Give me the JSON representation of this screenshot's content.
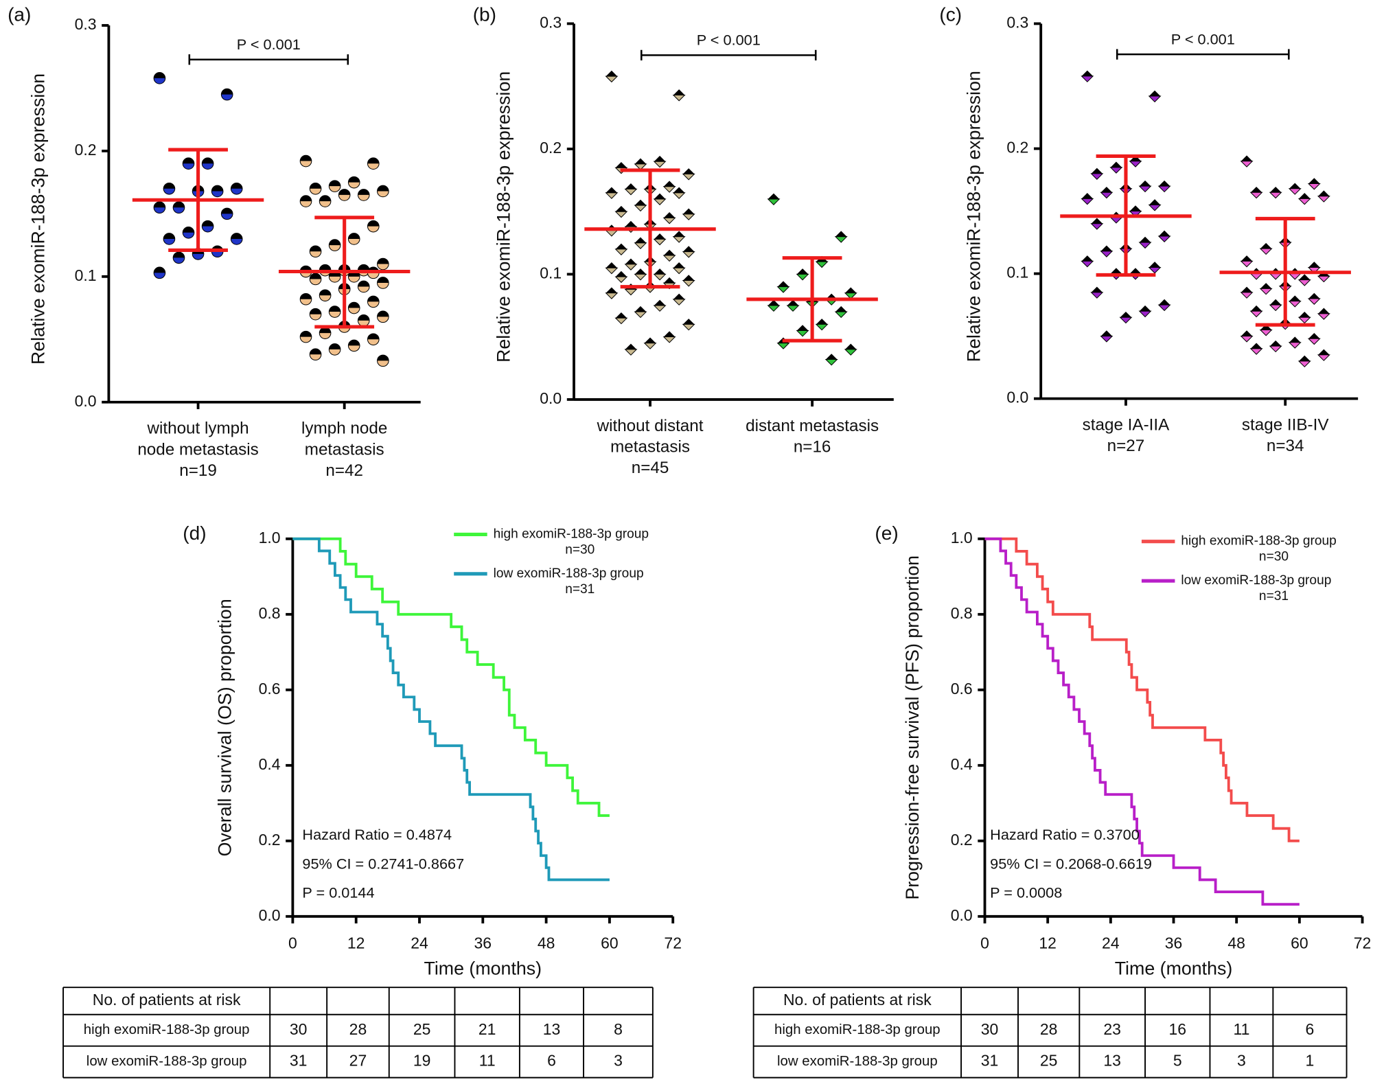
{
  "chart_data": [
    {
      "type": "dot",
      "panel_label": "(a)",
      "ylabel": "Relative exomiR-188-3p expression",
      "marker": "circle",
      "ylim": [
        0,
        0.3
      ],
      "yticks": [
        {
          "value": 0,
          "label": "0.0"
        },
        0.1,
        0.2,
        0.3
      ],
      "mean_color": "#ee1c1c",
      "categories": [
        [
          "without lymph",
          "node metastasis",
          "n=19"
        ],
        [
          "lymph node",
          "metastasis",
          "n=42"
        ]
      ],
      "groups": [
        {
          "color": "#1f35c8",
          "mean": 0.161,
          "sd_lower": 0.121,
          "sd_upper": 0.201,
          "values": [
            0.258,
            0.245,
            0.19,
            0.19,
            0.17,
            0.17,
            0.168,
            0.168,
            0.155,
            0.155,
            0.15,
            0.14,
            0.135,
            0.13,
            0.13,
            0.12,
            0.118,
            0.115,
            0.103
          ]
        },
        {
          "color": "#f1c08b",
          "mean": 0.104,
          "sd_lower": 0.06,
          "sd_upper": 0.147,
          "values": [
            0.192,
            0.19,
            0.175,
            0.172,
            0.17,
            0.168,
            0.165,
            0.165,
            0.16,
            0.16,
            0.14,
            0.13,
            0.125,
            0.12,
            0.11,
            0.105,
            0.105,
            0.105,
            0.104,
            0.103,
            0.1,
            0.1,
            0.098,
            0.095,
            0.092,
            0.09,
            0.085,
            0.082,
            0.08,
            0.075,
            0.072,
            0.07,
            0.068,
            0.065,
            0.06,
            0.055,
            0.052,
            0.05,
            0.045,
            0.042,
            0.038,
            0.033
          ]
        }
      ],
      "annotation": "P < 0.001"
    },
    {
      "type": "dot",
      "panel_label": "(b)",
      "ylabel": "Relative exomiR-188-3p expression",
      "marker": "diamond",
      "ylim": [
        0,
        0.3
      ],
      "yticks": [
        {
          "value": 0,
          "label": "0.0"
        },
        0.1,
        0.2,
        0.3
      ],
      "mean_color": "#ee1c1c",
      "categories": [
        [
          "without distant",
          "metastasis",
          "n=45"
        ],
        [
          "distant metastasis",
          "n=16"
        ]
      ],
      "groups": [
        {
          "color": "#c9b98f",
          "mean": 0.136,
          "sd_lower": 0.09,
          "sd_upper": 0.183,
          "values": [
            0.258,
            0.243,
            0.19,
            0.188,
            0.185,
            0.18,
            0.17,
            0.168,
            0.168,
            0.165,
            0.165,
            0.16,
            0.155,
            0.15,
            0.148,
            0.145,
            0.14,
            0.138,
            0.135,
            0.13,
            0.128,
            0.125,
            0.12,
            0.118,
            0.115,
            0.11,
            0.108,
            0.105,
            0.105,
            0.1,
            0.1,
            0.098,
            0.095,
            0.093,
            0.09,
            0.088,
            0.085,
            0.08,
            0.075,
            0.07,
            0.065,
            0.06,
            0.05,
            0.045,
            0.04
          ]
        },
        {
          "color": "#2fc23a",
          "mean": 0.08,
          "sd_lower": 0.047,
          "sd_upper": 0.113,
          "values": [
            0.16,
            0.13,
            0.11,
            0.1,
            0.09,
            0.085,
            0.08,
            0.078,
            0.075,
            0.075,
            0.07,
            0.06,
            0.055,
            0.045,
            0.04,
            0.032
          ]
        }
      ],
      "annotation": "P < 0.001"
    },
    {
      "type": "dot",
      "panel_label": "(c)",
      "ylabel": "Relative exomiR-188-3p expression",
      "marker": "diamond",
      "ylim": [
        0,
        0.3
      ],
      "yticks": [
        {
          "value": 0,
          "label": "0.0"
        },
        0.1,
        0.2,
        0.3
      ],
      "mean_color": "#ee1c1c",
      "categories": [
        [
          "stage IA-IIA",
          "n=27"
        ],
        [
          "stage IIB-IV",
          "n=34"
        ]
      ],
      "groups": [
        {
          "color": "#9a22c8",
          "mean": 0.146,
          "sd_lower": 0.099,
          "sd_upper": 0.194,
          "values": [
            0.258,
            0.242,
            0.19,
            0.185,
            0.18,
            0.17,
            0.17,
            0.168,
            0.165,
            0.16,
            0.155,
            0.15,
            0.145,
            0.14,
            0.13,
            0.125,
            0.12,
            0.118,
            0.11,
            0.105,
            0.1,
            0.1,
            0.085,
            0.075,
            0.07,
            0.065,
            0.05
          ]
        },
        {
          "color": "#ee5fd2",
          "mean": 0.101,
          "sd_lower": 0.059,
          "sd_upper": 0.144,
          "values": [
            0.19,
            0.172,
            0.168,
            0.165,
            0.165,
            0.162,
            0.16,
            0.125,
            0.12,
            0.11,
            0.105,
            0.1,
            0.1,
            0.1,
            0.098,
            0.095,
            0.09,
            0.088,
            0.085,
            0.08,
            0.078,
            0.075,
            0.07,
            0.068,
            0.065,
            0.06,
            0.055,
            0.05,
            0.048,
            0.045,
            0.042,
            0.04,
            0.035,
            0.03
          ]
        }
      ],
      "annotation": "P < 0.001"
    },
    {
      "type": "step",
      "panel_label": "(d)",
      "xlabel": "Time (months)",
      "ylabel": "Overall survival (OS) proportion",
      "xlim": [
        0,
        72
      ],
      "xticks": [
        0,
        12,
        24,
        36,
        48,
        60,
        72
      ],
      "ylim": [
        0,
        1
      ],
      "yticks": [
        {
          "value": 0,
          "label": "0.0"
        },
        0.2,
        0.4,
        0.6,
        0.8,
        {
          "value": 1,
          "label": "1.0"
        }
      ],
      "series": [
        {
          "name": "high exomiR-188-3p group",
          "n_label": "n=30",
          "color": "#3ef53a",
          "x": [
            0,
            8,
            9,
            10,
            12,
            15,
            17,
            20,
            30,
            32,
            33,
            35,
            38,
            40,
            41,
            42,
            44,
            46,
            48,
            52,
            53,
            54,
            58,
            60
          ],
          "y": [
            1,
            1,
            0.967,
            0.933,
            0.9,
            0.867,
            0.833,
            0.8,
            0.767,
            0.733,
            0.7,
            0.667,
            0.633,
            0.6,
            0.533,
            0.5,
            0.467,
            0.433,
            0.4,
            0.367,
            0.333,
            0.3,
            0.267,
            0.267
          ]
        },
        {
          "name": "low exomiR-188-3p group",
          "n_label": "n=31",
          "color": "#1f9ab8",
          "x": [
            0,
            5,
            7,
            8,
            9,
            10,
            11,
            16,
            17,
            18,
            18.5,
            19,
            20,
            21,
            23,
            24,
            26,
            27,
            32,
            32.5,
            33,
            33.5,
            45,
            45.5,
            46,
            46.5,
            47,
            48,
            48.5,
            60
          ],
          "y": [
            1,
            0.968,
            0.935,
            0.903,
            0.871,
            0.839,
            0.806,
            0.774,
            0.742,
            0.71,
            0.677,
            0.645,
            0.613,
            0.581,
            0.548,
            0.516,
            0.484,
            0.452,
            0.419,
            0.387,
            0.355,
            0.323,
            0.29,
            0.258,
            0.226,
            0.194,
            0.161,
            0.129,
            0.097,
            0.097
          ]
        }
      ],
      "annotations": [
        "Hazard Ratio = 0.4874",
        "95% CI = 0.2741-0.8667",
        "P = 0.0144"
      ]
    },
    {
      "type": "step",
      "panel_label": "(e)",
      "xlabel": "Time (months)",
      "ylabel": "Progression-free survival (PFS) proportion",
      "xlim": [
        0,
        72
      ],
      "xticks": [
        0,
        12,
        24,
        36,
        48,
        60,
        72
      ],
      "ylim": [
        0,
        1
      ],
      "yticks": [
        {
          "value": 0,
          "label": "0.0"
        },
        0.2,
        0.4,
        0.6,
        0.8,
        {
          "value": 1,
          "label": "1.0"
        }
      ],
      "series": [
        {
          "name": "high exomiR-188-3p group",
          "n_label": "n=30",
          "color": "#f34c4c",
          "x": [
            0,
            6,
            8,
            10,
            11,
            12,
            13,
            20,
            20.5,
            27,
            27.5,
            28,
            29,
            31,
            31.5,
            32,
            42,
            45,
            45.5,
            46,
            46.5,
            47,
            50,
            55,
            58,
            60
          ],
          "y": [
            1,
            0.967,
            0.933,
            0.9,
            0.867,
            0.833,
            0.8,
            0.767,
            0.733,
            0.7,
            0.667,
            0.633,
            0.6,
            0.567,
            0.533,
            0.5,
            0.467,
            0.433,
            0.4,
            0.367,
            0.333,
            0.3,
            0.267,
            0.233,
            0.2,
            0.2
          ]
        },
        {
          "name": "low exomiR-188-3p group",
          "n_label": "n=31",
          "color": "#b81fc8",
          "x": [
            0,
            3,
            4,
            5,
            6,
            7,
            8,
            10,
            11,
            12,
            13,
            14,
            15,
            16,
            17,
            18,
            19,
            20,
            20.5,
            21,
            22,
            23,
            28,
            28.5,
            29,
            29.5,
            30,
            36,
            41,
            44,
            53,
            60
          ],
          "y": [
            1,
            0.968,
            0.935,
            0.903,
            0.871,
            0.839,
            0.806,
            0.774,
            0.742,
            0.71,
            0.677,
            0.645,
            0.613,
            0.581,
            0.548,
            0.516,
            0.484,
            0.452,
            0.419,
            0.387,
            0.355,
            0.323,
            0.29,
            0.258,
            0.226,
            0.194,
            0.161,
            0.129,
            0.097,
            0.065,
            0.032,
            0.032
          ]
        }
      ],
      "annotations": [
        "Hazard Ratio = 0.3700",
        "95% CI = 0.2068-0.6619",
        "P = 0.0008"
      ]
    }
  ],
  "risk_tables": [
    {
      "header": "No. of patients at risk",
      "rows": [
        {
          "label": "high exomiR-188-3p group",
          "values": [
            30,
            28,
            25,
            21,
            13,
            8
          ]
        },
        {
          "label": "low exomiR-188-3p group",
          "values": [
            31,
            27,
            19,
            11,
            6,
            3
          ]
        }
      ]
    },
    {
      "header": "No. of patients at risk",
      "rows": [
        {
          "label": "high exomiR-188-3p group",
          "values": [
            30,
            28,
            23,
            16,
            11,
            6
          ]
        },
        {
          "label": "low exomiR-188-3p group",
          "values": [
            31,
            25,
            13,
            5,
            3,
            1
          ]
        }
      ]
    }
  ]
}
